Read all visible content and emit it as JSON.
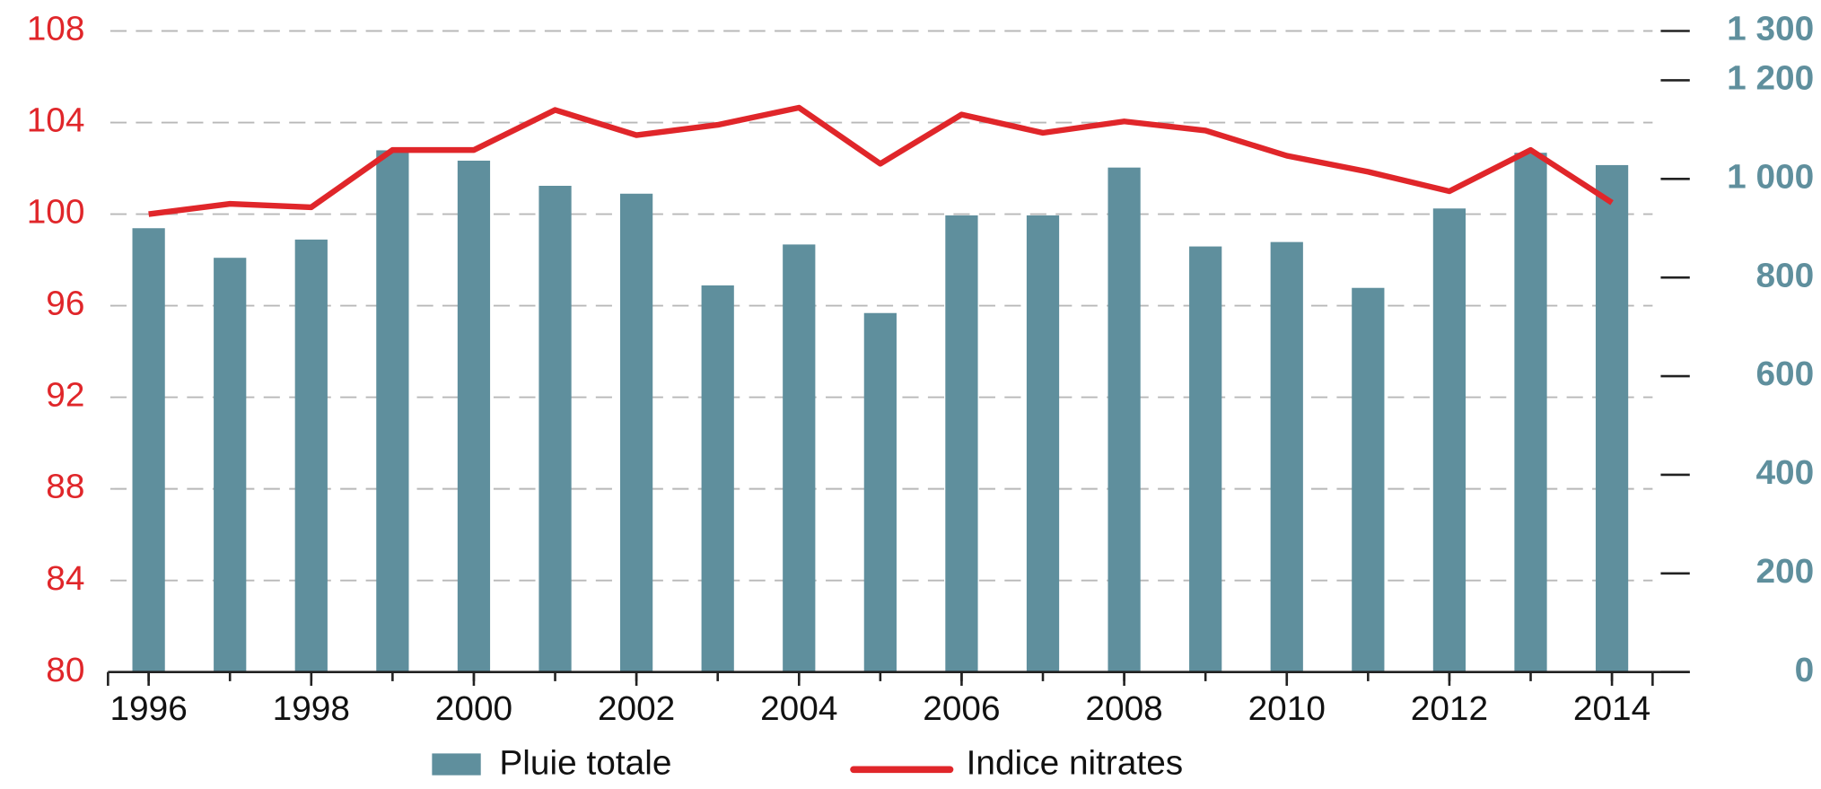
{
  "chart_data": {
    "type": "bar-line",
    "x": [
      1996,
      1997,
      1998,
      1999,
      2000,
      2001,
      2002,
      2003,
      2004,
      2005,
      2006,
      2007,
      2008,
      2009,
      2010,
      2011,
      2012,
      2013,
      2014
    ],
    "xlim": [
      1995.5,
      2014.5
    ],
    "xticks": [
      1996,
      1998,
      2000,
      2002,
      2004,
      2006,
      2008,
      2010,
      2012,
      2014
    ],
    "ylim": [
      80,
      108
    ],
    "yticks": [
      80,
      84,
      88,
      92,
      96,
      100,
      104,
      108
    ],
    "y2lim": [
      0,
      1300
    ],
    "y2ticks": [
      0,
      200,
      400,
      600,
      800,
      {
        "value": 1000,
        "label": "1 000"
      },
      {
        "value": 1200,
        "label": "1 200"
      },
      {
        "value": 1300,
        "label": "1 300"
      }
    ],
    "grid": true,
    "series": [
      {
        "name": "Pluie totale",
        "type": "bar",
        "axis": "y2",
        "color": "#5f8f9d",
        "values": [
          900,
          840,
          877,
          1058,
          1037,
          986,
          970,
          784,
          867,
          728,
          926,
          926,
          1023,
          863,
          872,
          779,
          940,
          1053,
          1028
        ]
      },
      {
        "name": "Indice nitrates",
        "type": "line",
        "color": "#e0262a",
        "values": [
          100,
          100.45,
          100.3,
          102.8,
          102.8,
          104.55,
          103.45,
          103.9,
          104.65,
          102.2,
          104.35,
          103.55,
          104.05,
          103.65,
          102.55,
          101.85,
          101.0,
          102.8,
          100.5
        ]
      }
    ]
  }
}
